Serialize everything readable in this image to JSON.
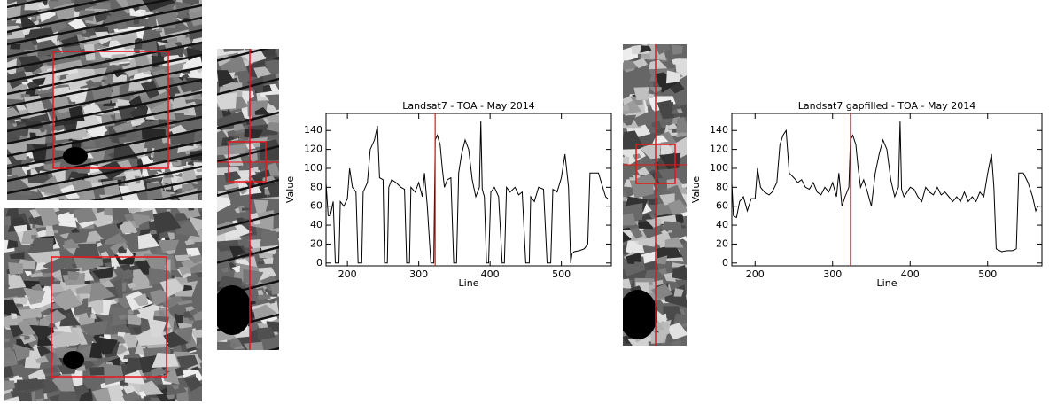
{
  "chart_data": [
    {
      "type": "line",
      "title": "Landsat7 - TOA - May 2014",
      "xlabel": "Line",
      "ylabel": "Value",
      "xlim": [
        170,
        570
      ],
      "ylim": [
        -3,
        158
      ],
      "xticks": [
        200,
        300,
        400,
        500
      ],
      "yticks": [
        0,
        20,
        40,
        60,
        80,
        100,
        120,
        140
      ],
      "marker_x": 323,
      "marker_color": "#e8141b",
      "color": "#000000",
      "x": [
        170,
        173,
        176,
        180,
        183,
        188,
        190,
        195,
        200,
        203,
        207,
        212,
        215,
        220,
        222,
        228,
        232,
        238,
        242,
        245,
        250,
        252,
        256,
        258,
        262,
        268,
        275,
        280,
        283,
        287,
        289,
        295,
        300,
        305,
        308,
        312,
        317,
        321,
        323,
        326,
        330,
        333,
        336,
        340,
        345,
        349,
        353,
        356,
        360,
        365,
        370,
        375,
        380,
        385,
        387,
        389,
        392,
        395,
        398,
        401,
        406,
        412,
        417,
        420,
        423,
        428,
        435,
        440,
        445,
        450,
        455,
        457,
        462,
        468,
        475,
        480,
        485,
        488,
        494,
        500,
        505,
        510,
        513,
        515,
        518,
        525,
        532,
        537,
        540,
        546,
        552,
        558,
        562,
        565
      ],
      "values": [
        85,
        50,
        50,
        65,
        0,
        0,
        65,
        60,
        68,
        100,
        80,
        75,
        0,
        0,
        75,
        85,
        120,
        130,
        145,
        90,
        88,
        0,
        0,
        80,
        88,
        85,
        80,
        78,
        0,
        0,
        80,
        75,
        85,
        70,
        95,
        60,
        0,
        0,
        130,
        135,
        125,
        100,
        80,
        88,
        90,
        0,
        0,
        95,
        115,
        130,
        120,
        88,
        70,
        80,
        150,
        78,
        70,
        0,
        0,
        75,
        80,
        70,
        0,
        0,
        80,
        75,
        80,
        72,
        75,
        0,
        0,
        70,
        65,
        80,
        78,
        0,
        0,
        78,
        75,
        90,
        115,
        80,
        0,
        10,
        12,
        13,
        15,
        20,
        95,
        95,
        95,
        80,
        70,
        68
      ]
    },
    {
      "type": "line",
      "title": "Landsat7 gapfilled - TOA - May 2014",
      "xlabel": "Line",
      "ylabel": "Value",
      "xlim": [
        170,
        570
      ],
      "ylim": [
        -3,
        158
      ],
      "xticks": [
        200,
        300,
        400,
        500
      ],
      "yticks": [
        0,
        20,
        40,
        60,
        80,
        100,
        120,
        140
      ],
      "marker_x": 323,
      "marker_color": "#e8141b",
      "color": "#000000",
      "x": [
        170,
        172,
        176,
        180,
        185,
        190,
        195,
        200,
        203,
        207,
        212,
        218,
        222,
        228,
        232,
        236,
        240,
        244,
        250,
        255,
        260,
        265,
        270,
        275,
        280,
        285,
        290,
        295,
        300,
        305,
        308,
        312,
        316,
        321,
        323,
        326,
        330,
        333,
        336,
        340,
        345,
        350,
        355,
        360,
        365,
        370,
        375,
        380,
        385,
        387,
        389,
        392,
        396,
        400,
        405,
        410,
        415,
        420,
        425,
        430,
        435,
        440,
        445,
        450,
        455,
        460,
        465,
        470,
        475,
        480,
        485,
        490,
        495,
        500,
        505,
        508,
        511,
        518,
        525,
        532,
        537,
        540,
        546,
        552,
        558,
        562,
        565
      ],
      "values": [
        85,
        50,
        48,
        65,
        70,
        55,
        68,
        68,
        100,
        80,
        75,
        72,
        75,
        85,
        125,
        135,
        140,
        95,
        90,
        85,
        88,
        80,
        78,
        85,
        75,
        72,
        80,
        75,
        85,
        70,
        95,
        60,
        70,
        80,
        130,
        135,
        125,
        100,
        80,
        88,
        75,
        60,
        95,
        115,
        130,
        120,
        88,
        70,
        80,
        150,
        78,
        70,
        75,
        80,
        78,
        70,
        65,
        80,
        75,
        72,
        80,
        72,
        75,
        70,
        65,
        70,
        65,
        75,
        65,
        70,
        65,
        75,
        70,
        95,
        115,
        80,
        15,
        12,
        13,
        13,
        15,
        95,
        95,
        85,
        70,
        55,
        60
      ]
    }
  ]
}
